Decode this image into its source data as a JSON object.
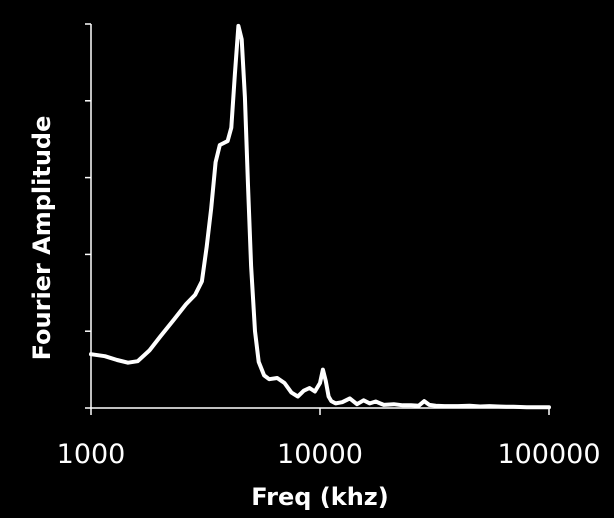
{
  "chart_data": {
    "type": "line",
    "title": "",
    "xlabel": "Freq (khz)",
    "ylabel": "Fourier Amplitude",
    "xscale": "log",
    "xlim": [
      1000,
      100000
    ],
    "ylim": [
      0,
      1
    ],
    "y_tick_values": [
      0,
      0.2,
      0.4,
      0.6,
      0.8,
      1.0
    ],
    "x_ticks": [
      {
        "value": 1000,
        "label": "1000"
      },
      {
        "value": 10000,
        "label": "10000"
      },
      {
        "value": 100000,
        "label": "100000"
      }
    ],
    "grid": false,
    "legend": "none",
    "colors": {
      "background": "#000000",
      "line": "#ffffff",
      "text": "#ffffff"
    },
    "series": [
      {
        "x": [
          1000,
          1150,
          1300,
          1450,
          1600,
          1800,
          2000,
          2300,
          2600,
          2850,
          3050,
          3200,
          3350,
          3500,
          3650,
          3800,
          3950,
          4100,
          4250,
          4400,
          4550,
          4700,
          4850,
          5000,
          5200,
          5400,
          5700,
          6000,
          6500,
          7000,
          7500,
          8000,
          8500,
          9000,
          9500,
          10000,
          10300,
          10600,
          10900,
          11200,
          11700,
          12500,
          13500,
          14500,
          15500,
          16500,
          17500,
          19000,
          21000,
          23000,
          25000,
          27000,
          28500,
          30000,
          32000,
          35000,
          40000,
          45000,
          50000,
          55000,
          60000,
          65000,
          70000,
          80000,
          90000,
          100000
        ],
        "y": [
          0.14,
          0.135,
          0.125,
          0.118,
          0.122,
          0.15,
          0.185,
          0.23,
          0.27,
          0.295,
          0.33,
          0.42,
          0.52,
          0.64,
          0.685,
          0.69,
          0.695,
          0.73,
          0.87,
          0.995,
          0.96,
          0.81,
          0.58,
          0.37,
          0.2,
          0.12,
          0.085,
          0.075,
          0.078,
          0.065,
          0.04,
          0.03,
          0.045,
          0.052,
          0.043,
          0.065,
          0.1,
          0.07,
          0.03,
          0.018,
          0.012,
          0.015,
          0.025,
          0.01,
          0.02,
          0.012,
          0.017,
          0.008,
          0.01,
          0.007,
          0.007,
          0.006,
          0.018,
          0.008,
          0.006,
          0.005,
          0.005,
          0.006,
          0.004,
          0.005,
          0.004,
          0.003,
          0.003,
          0.002,
          0.002,
          0.002
        ]
      }
    ]
  }
}
